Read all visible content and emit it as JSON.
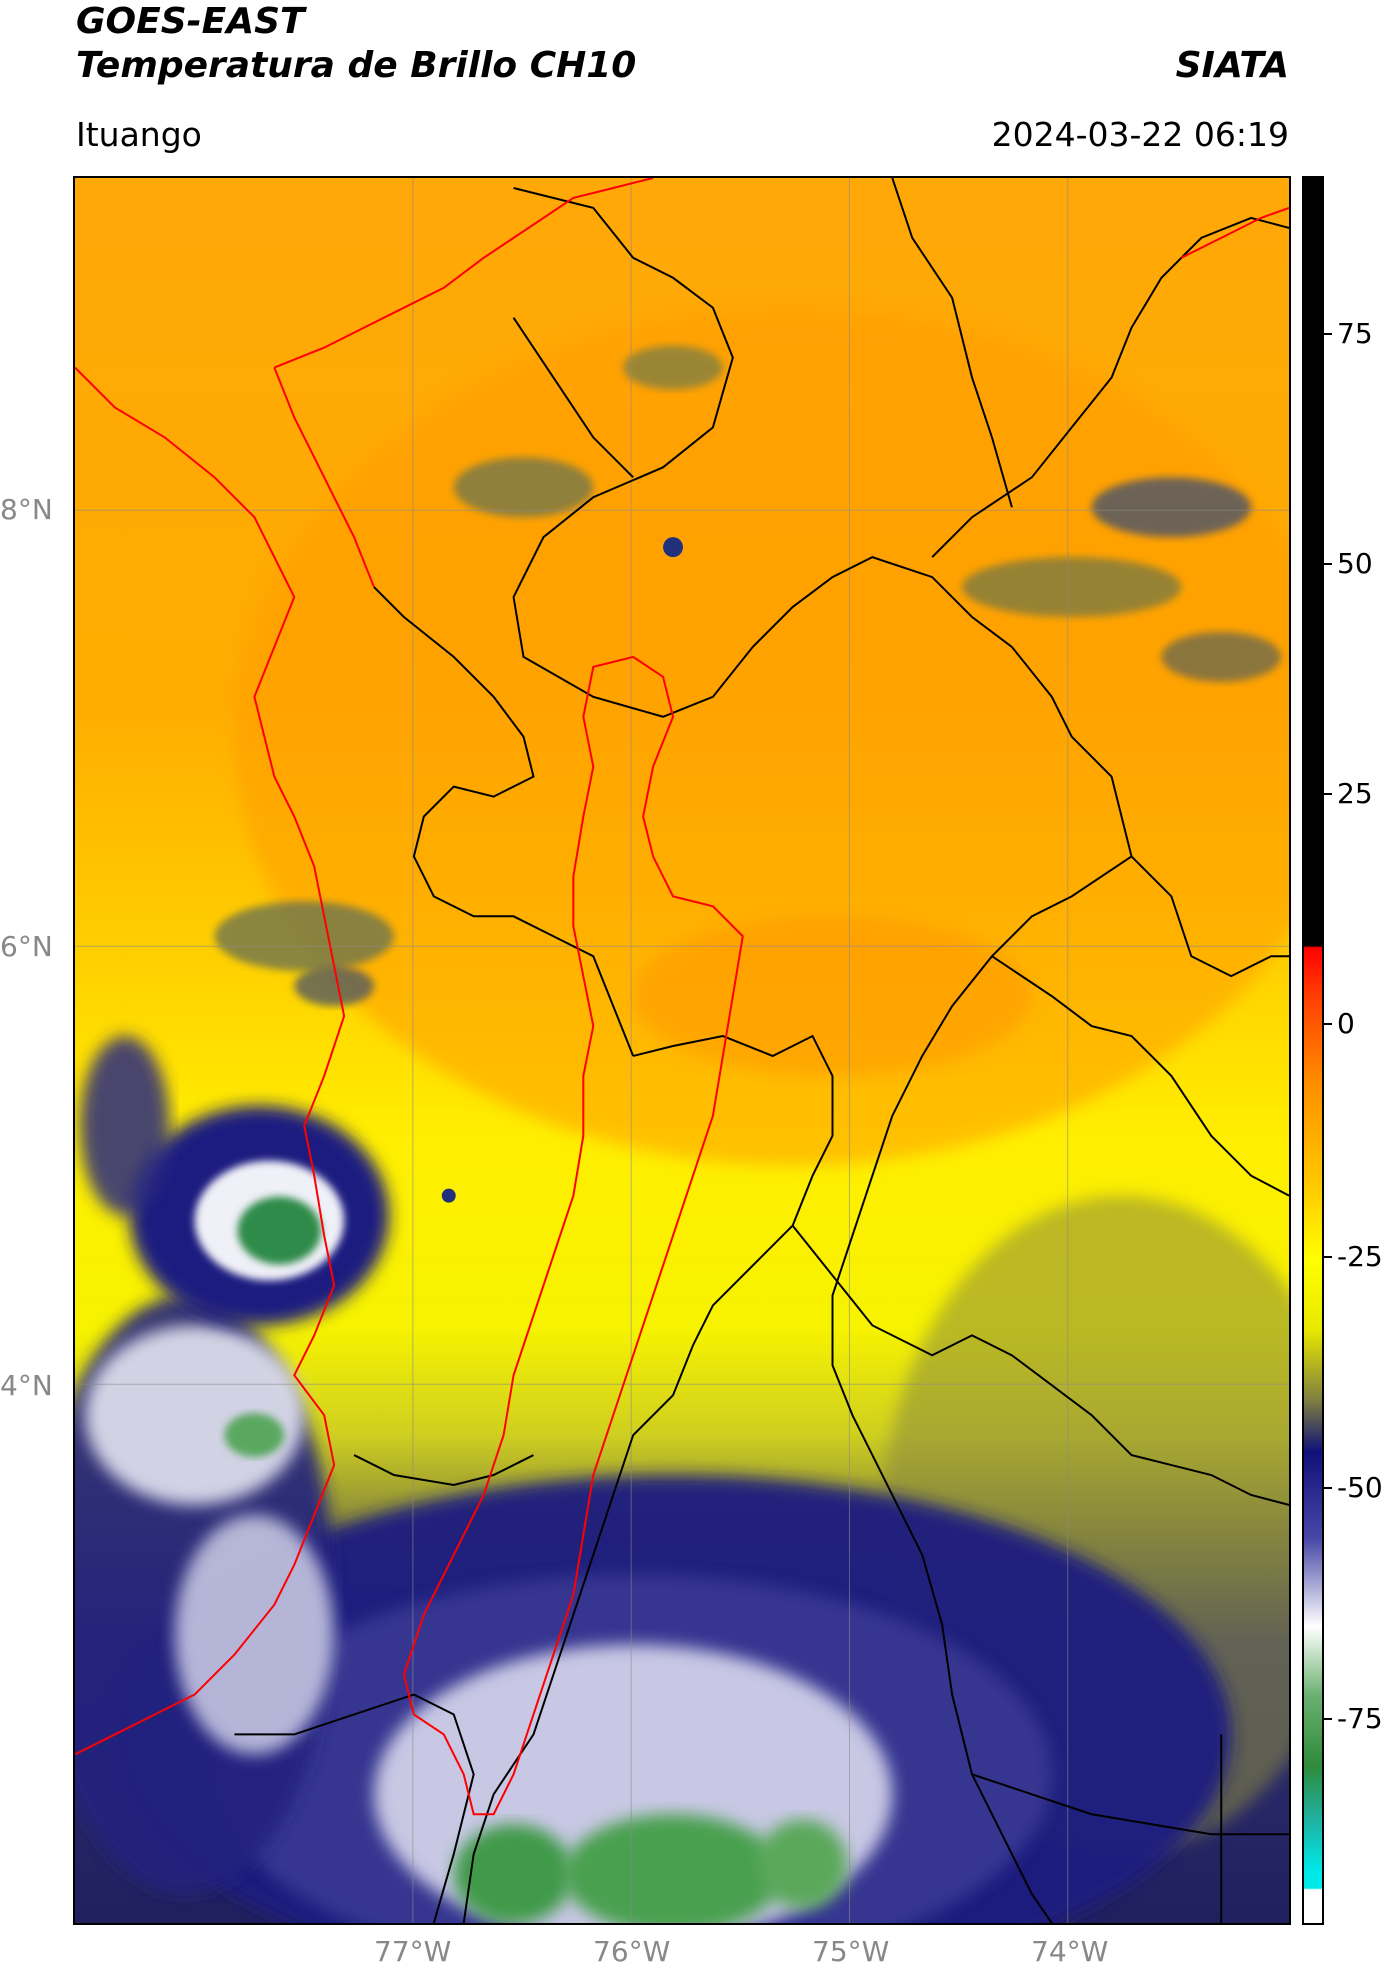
{
  "header": {
    "title_line1": "GOES-EAST",
    "title_line2": "Temperatura de Brillo CH10",
    "organization": "SIATA",
    "location": "Ituango",
    "datetime": "2024-03-22 06:19"
  },
  "map": {
    "lat_labels": [
      "8°N",
      "6°N",
      "4°N"
    ],
    "lon_labels": [
      "77°W",
      "76°W",
      "75°W",
      "74°W"
    ],
    "gridlines": true,
    "border_colors": {
      "coast_and_basin": "#ff0000",
      "departments": "#000000"
    }
  },
  "colorbar": {
    "ticks": [
      "75",
      "50",
      "25",
      "0",
      "-25",
      "-50",
      "-75"
    ],
    "colors": {
      "warm_black": "#000000",
      "red": "#ff0000",
      "orange": "#ffa500",
      "yellow": "#ffff00",
      "olive": "#808040",
      "navy": "#10107a",
      "white": "#ffffff",
      "green": "#2e8b3a",
      "cyan": "#00e0e0"
    }
  }
}
